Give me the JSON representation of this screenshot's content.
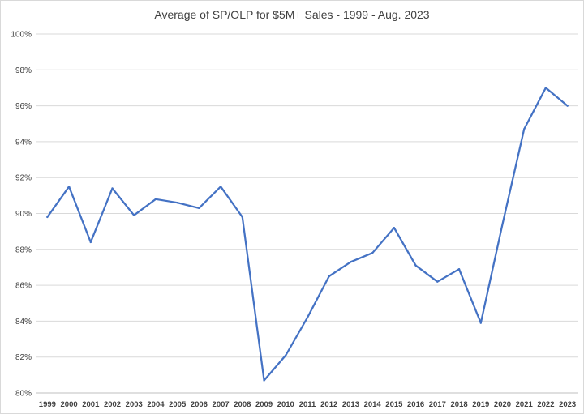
{
  "chart_data": {
    "type": "line",
    "title": "Average of SP/OLP  for $5M+ Sales - 1999 - Aug. 2023",
    "xlabel": "",
    "ylabel": "",
    "categories": [
      "1999",
      "2000",
      "2001",
      "2002",
      "2003",
      "2004",
      "2005",
      "2006",
      "2007",
      "2008",
      "2009",
      "2010",
      "2011",
      "2012",
      "2013",
      "2014",
      "2015",
      "2016",
      "2017",
      "2018",
      "2019",
      "2020",
      "2021",
      "2022",
      "2023"
    ],
    "series": [
      {
        "values": [
          89.8,
          91.5,
          88.4,
          91.4,
          89.9,
          90.8,
          90.6,
          90.3,
          91.5,
          89.8,
          80.7,
          82.1,
          84.2,
          86.5,
          87.3,
          87.8,
          89.2,
          87.1,
          86.2,
          86.9,
          83.9,
          89.4,
          94.7,
          97.0,
          96.0
        ],
        "color": "#4472c4"
      }
    ],
    "ylim": [
      80,
      100
    ],
    "y_ticks": [
      "80%",
      "82%",
      "84%",
      "86%",
      "88%",
      "90%",
      "92%",
      "94%",
      "96%",
      "98%",
      "100%"
    ],
    "grid": true,
    "legend": "none"
  }
}
